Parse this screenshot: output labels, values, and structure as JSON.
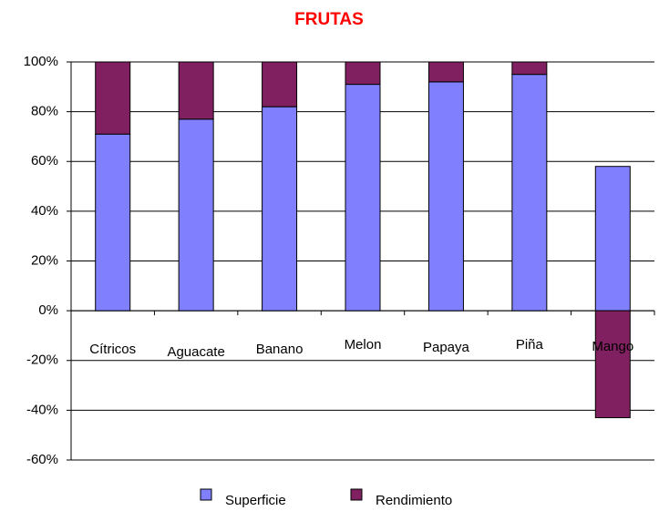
{
  "chart_data": {
    "type": "stacked_bar",
    "title": "FRUTAS",
    "categories": [
      "Cítricos",
      "Aguacate",
      "Banano",
      "Melon",
      "Papaya",
      "Piña",
      "Mango"
    ],
    "series": [
      {
        "name": "Superficie",
        "color": "#8080ff",
        "values": [
          71,
          77,
          82,
          91,
          92,
          95,
          58
        ]
      },
      {
        "name": "Rendimiento",
        "color": "#802060",
        "values": [
          29,
          23,
          18,
          9,
          8,
          5,
          -43
        ]
      }
    ],
    "ylim": [
      -60,
      100
    ],
    "yticks": [
      {
        "value": 100,
        "label": "100%"
      },
      {
        "value": 80,
        "label": "80%"
      },
      {
        "value": 60,
        "label": "60%"
      },
      {
        "value": 40,
        "label": "40%"
      },
      {
        "value": 20,
        "label": "20%"
      },
      {
        "value": 0,
        "label": "0%"
      },
      {
        "value": -20,
        "label": "-20%"
      },
      {
        "value": -40,
        "label": "-40%"
      },
      {
        "value": -60,
        "label": "-60%"
      }
    ],
    "grid": true,
    "legend": "bottom"
  }
}
